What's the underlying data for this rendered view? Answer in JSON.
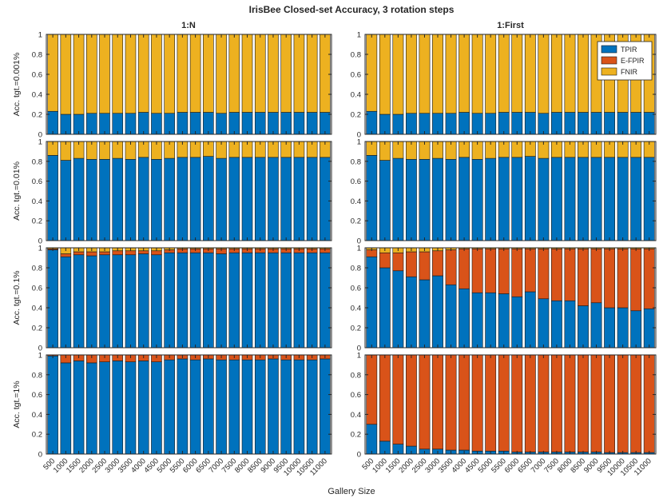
{
  "chart_data": {
    "type": "bar",
    "stacked": true,
    "title": "IrisBee Closed-set Accuracy, 3 rotation steps",
    "xlabel": "Gallery Size",
    "column_titles": [
      "1:N",
      "1:First"
    ],
    "row_ylabels": [
      "Acc. tgt.=0.001%",
      "Acc. tgt.=0.01%",
      "Acc. tgt.=0.1%",
      "Acc. tgt.=1%"
    ],
    "categories": [
      "500",
      "1000",
      "1500",
      "2000",
      "2500",
      "3000",
      "3500",
      "4000",
      "4500",
      "5000",
      "5500",
      "6000",
      "6500",
      "7000",
      "7500",
      "8000",
      "8500",
      "9000",
      "9500",
      "10000",
      "10500",
      "11000"
    ],
    "ylim": [
      0,
      1
    ],
    "yticks": [
      "0",
      "0.2",
      "0.4",
      "0.6",
      "0.8",
      "1"
    ],
    "legend": {
      "location": "top-right of 1:First, row 1",
      "entries": [
        "TPIR",
        "E-FPIR",
        "FNIR"
      ]
    },
    "colors": {
      "TPIR": "#0072BD",
      "E-FPIR": "#D95319",
      "FNIR": "#EDB120"
    },
    "panels": [
      {
        "row": 0,
        "col": 0,
        "series": [
          {
            "name": "TPIR",
            "values": [
              0.23,
              0.2,
              0.2,
              0.21,
              0.21,
              0.21,
              0.21,
              0.22,
              0.21,
              0.21,
              0.22,
              0.22,
              0.22,
              0.21,
              0.22,
              0.22,
              0.22,
              0.22,
              0.22,
              0.22,
              0.22,
              0.22
            ]
          },
          {
            "name": "E-FPIR",
            "values": [
              0,
              0,
              0,
              0,
              0,
              0,
              0,
              0,
              0,
              0,
              0,
              0,
              0,
              0,
              0,
              0,
              0,
              0,
              0,
              0,
              0,
              0
            ]
          },
          {
            "name": "FNIR",
            "values": [
              0.77,
              0.8,
              0.8,
              0.79,
              0.79,
              0.79,
              0.79,
              0.78,
              0.79,
              0.79,
              0.78,
              0.78,
              0.78,
              0.79,
              0.78,
              0.78,
              0.78,
              0.78,
              0.78,
              0.78,
              0.78,
              0.78
            ]
          }
        ]
      },
      {
        "row": 0,
        "col": 1,
        "series": [
          {
            "name": "TPIR",
            "values": [
              0.23,
              0.2,
              0.2,
              0.21,
              0.21,
              0.21,
              0.21,
              0.22,
              0.21,
              0.21,
              0.22,
              0.22,
              0.22,
              0.21,
              0.22,
              0.22,
              0.22,
              0.22,
              0.22,
              0.22,
              0.22,
              0.22
            ]
          },
          {
            "name": "E-FPIR",
            "values": [
              0,
              0,
              0,
              0,
              0,
              0,
              0,
              0,
              0,
              0,
              0,
              0,
              0,
              0,
              0,
              0,
              0,
              0,
              0,
              0,
              0,
              0
            ]
          },
          {
            "name": "FNIR",
            "values": [
              0.77,
              0.8,
              0.8,
              0.79,
              0.79,
              0.79,
              0.79,
              0.78,
              0.79,
              0.79,
              0.78,
              0.78,
              0.78,
              0.79,
              0.78,
              0.78,
              0.78,
              0.78,
              0.78,
              0.78,
              0.78,
              0.78
            ]
          }
        ]
      },
      {
        "row": 1,
        "col": 0,
        "series": [
          {
            "name": "TPIR",
            "values": [
              0.86,
              0.81,
              0.83,
              0.82,
              0.82,
              0.83,
              0.82,
              0.84,
              0.82,
              0.83,
              0.84,
              0.84,
              0.85,
              0.83,
              0.84,
              0.84,
              0.84,
              0.84,
              0.84,
              0.84,
              0.84,
              0.84
            ]
          },
          {
            "name": "E-FPIR",
            "values": [
              0,
              0,
              0,
              0,
              0,
              0,
              0,
              0,
              0,
              0,
              0,
              0,
              0,
              0,
              0,
              0,
              0,
              0,
              0,
              0,
              0,
              0
            ]
          },
          {
            "name": "FNIR",
            "values": [
              0.14,
              0.19,
              0.17,
              0.18,
              0.18,
              0.17,
              0.18,
              0.16,
              0.18,
              0.17,
              0.16,
              0.16,
              0.15,
              0.17,
              0.16,
              0.16,
              0.16,
              0.16,
              0.16,
              0.16,
              0.16,
              0.16
            ]
          }
        ]
      },
      {
        "row": 1,
        "col": 1,
        "series": [
          {
            "name": "TPIR",
            "values": [
              0.86,
              0.81,
              0.83,
              0.82,
              0.82,
              0.83,
              0.82,
              0.84,
              0.82,
              0.83,
              0.84,
              0.84,
              0.85,
              0.83,
              0.84,
              0.84,
              0.84,
              0.84,
              0.84,
              0.84,
              0.84,
              0.84
            ]
          },
          {
            "name": "E-FPIR",
            "values": [
              0,
              0,
              0,
              0,
              0,
              0,
              0,
              0,
              0,
              0,
              0,
              0,
              0,
              0,
              0,
              0,
              0,
              0,
              0,
              0,
              0,
              0
            ]
          },
          {
            "name": "FNIR",
            "values": [
              0.14,
              0.19,
              0.17,
              0.18,
              0.18,
              0.17,
              0.18,
              0.16,
              0.18,
              0.17,
              0.16,
              0.16,
              0.15,
              0.17,
              0.16,
              0.16,
              0.16,
              0.16,
              0.16,
              0.16,
              0.16,
              0.16
            ]
          }
        ]
      },
      {
        "row": 2,
        "col": 0,
        "series": [
          {
            "name": "TPIR",
            "values": [
              0.98,
              0.91,
              0.93,
              0.92,
              0.93,
              0.93,
              0.93,
              0.94,
              0.93,
              0.95,
              0.95,
              0.95,
              0.95,
              0.94,
              0.95,
              0.95,
              0.95,
              0.95,
              0.95,
              0.95,
              0.95,
              0.95
            ]
          },
          {
            "name": "E-FPIR",
            "values": [
              0.01,
              0.03,
              0.03,
              0.04,
              0.03,
              0.04,
              0.04,
              0.03,
              0.04,
              0.03,
              0.04,
              0.04,
              0.04,
              0.05,
              0.04,
              0.04,
              0.04,
              0.04,
              0.04,
              0.04,
              0.04,
              0.04
            ]
          },
          {
            "name": "FNIR",
            "values": [
              0.01,
              0.06,
              0.04,
              0.04,
              0.04,
              0.03,
              0.03,
              0.03,
              0.03,
              0.02,
              0.01,
              0.01,
              0.01,
              0.01,
              0.01,
              0.01,
              0.01,
              0.01,
              0.01,
              0.01,
              0.01,
              0.01
            ]
          }
        ]
      },
      {
        "row": 2,
        "col": 1,
        "series": [
          {
            "name": "TPIR",
            "values": [
              0.91,
              0.8,
              0.77,
              0.71,
              0.68,
              0.72,
              0.63,
              0.59,
              0.55,
              0.55,
              0.54,
              0.51,
              0.56,
              0.49,
              0.47,
              0.47,
              0.42,
              0.45,
              0.4,
              0.4,
              0.37,
              0.39
            ]
          },
          {
            "name": "E-FPIR",
            "values": [
              0.07,
              0.15,
              0.18,
              0.25,
              0.28,
              0.25,
              0.35,
              0.4,
              0.44,
              0.44,
              0.45,
              0.48,
              0.43,
              0.5,
              0.52,
              0.52,
              0.57,
              0.54,
              0.59,
              0.59,
              0.62,
              0.6
            ]
          },
          {
            "name": "FNIR",
            "values": [
              0.02,
              0.05,
              0.05,
              0.04,
              0.04,
              0.03,
              0.02,
              0.01,
              0.01,
              0.01,
              0.01,
              0.01,
              0.01,
              0.01,
              0.01,
              0.01,
              0.01,
              0.01,
              0.01,
              0.01,
              0.01,
              0.01
            ]
          }
        ]
      },
      {
        "row": 3,
        "col": 0,
        "series": [
          {
            "name": "TPIR",
            "values": [
              0.99,
              0.92,
              0.94,
              0.92,
              0.93,
              0.94,
              0.93,
              0.94,
              0.93,
              0.95,
              0.96,
              0.95,
              0.96,
              0.95,
              0.95,
              0.95,
              0.95,
              0.96,
              0.95,
              0.95,
              0.95,
              0.96
            ]
          },
          {
            "name": "E-FPIR",
            "values": [
              0.01,
              0.08,
              0.06,
              0.08,
              0.07,
              0.06,
              0.07,
              0.06,
              0.07,
              0.05,
              0.04,
              0.05,
              0.04,
              0.05,
              0.05,
              0.05,
              0.05,
              0.04,
              0.05,
              0.05,
              0.05,
              0.04
            ]
          },
          {
            "name": "FNIR",
            "values": [
              0,
              0,
              0,
              0,
              0,
              0,
              0,
              0,
              0,
              0,
              0,
              0,
              0,
              0,
              0,
              0,
              0,
              0,
              0,
              0,
              0,
              0
            ]
          }
        ]
      },
      {
        "row": 3,
        "col": 1,
        "series": [
          {
            "name": "TPIR",
            "values": [
              0.3,
              0.13,
              0.1,
              0.08,
              0.05,
              0.05,
              0.04,
              0.04,
              0.03,
              0.03,
              0.03,
              0.02,
              0.02,
              0.02,
              0.02,
              0.02,
              0.02,
              0.02,
              0.015,
              0.015,
              0.015,
              0.015
            ]
          },
          {
            "name": "E-FPIR",
            "values": [
              0.7,
              0.87,
              0.9,
              0.92,
              0.95,
              0.95,
              0.96,
              0.96,
              0.97,
              0.97,
              0.97,
              0.98,
              0.98,
              0.98,
              0.98,
              0.98,
              0.98,
              0.98,
              0.985,
              0.985,
              0.985,
              0.985
            ]
          },
          {
            "name": "FNIR",
            "values": [
              0,
              0,
              0,
              0,
              0,
              0,
              0,
              0,
              0,
              0,
              0,
              0,
              0,
              0,
              0,
              0,
              0,
              0,
              0,
              0,
              0,
              0
            ]
          }
        ]
      }
    ]
  }
}
